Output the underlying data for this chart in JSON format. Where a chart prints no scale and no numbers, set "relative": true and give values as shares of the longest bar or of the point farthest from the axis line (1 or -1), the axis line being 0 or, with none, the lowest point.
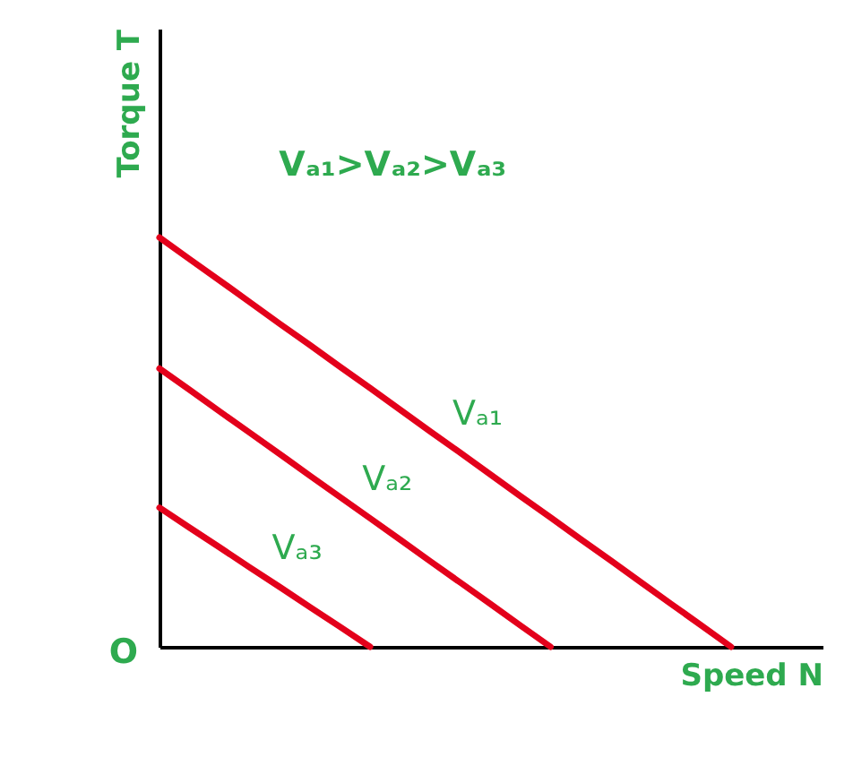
{
  "chart_data": {
    "type": "line",
    "relative": true,
    "xlabel": "Speed N",
    "ylabel": "Torque T",
    "annotations": [
      "Vₐ₁>Vₐ₂>Vₐ₃",
      "O"
    ],
    "categories": [
      null,
      null,
      null,
      null,
      null,
      null,
      null,
      null,
      null,
      null,
      null,
      null,
      null,
      null,
      null,
      null,
      null,
      null,
      null,
      null
    ],
    "series": [
      {
        "name": "Vₐ₁",
        "color": "#e3001b",
        "values": [
          1,
          0.947,
          0.895,
          0.842,
          0.789,
          0.737,
          0.684,
          0.632,
          0.579,
          0.526,
          0.474,
          0.421,
          0.368,
          0.316,
          0.263,
          0.211,
          0.158,
          0.105,
          0.053,
          0
        ]
      },
      {
        "name": "Vₐ₂",
        "color": "#e3001b",
        "values": [
          0.68,
          0.628,
          0.575,
          0.523,
          0.471,
          0.418,
          0.366,
          0.314,
          0.262,
          0.209,
          0.157,
          0.105,
          0.052,
          0,
          null,
          null,
          null,
          null,
          null,
          null
        ]
      },
      {
        "name": "Vₐ₃",
        "color": "#e3001b",
        "values": [
          0.34,
          0.291,
          0.243,
          0.194,
          0.146,
          0.097,
          0.049,
          0,
          null,
          null,
          null,
          null,
          null,
          null,
          null,
          null,
          null,
          null,
          null,
          null
        ]
      }
    ],
    "grid": false,
    "legend": false,
    "marker": "none",
    "line_style": "solid"
  }
}
